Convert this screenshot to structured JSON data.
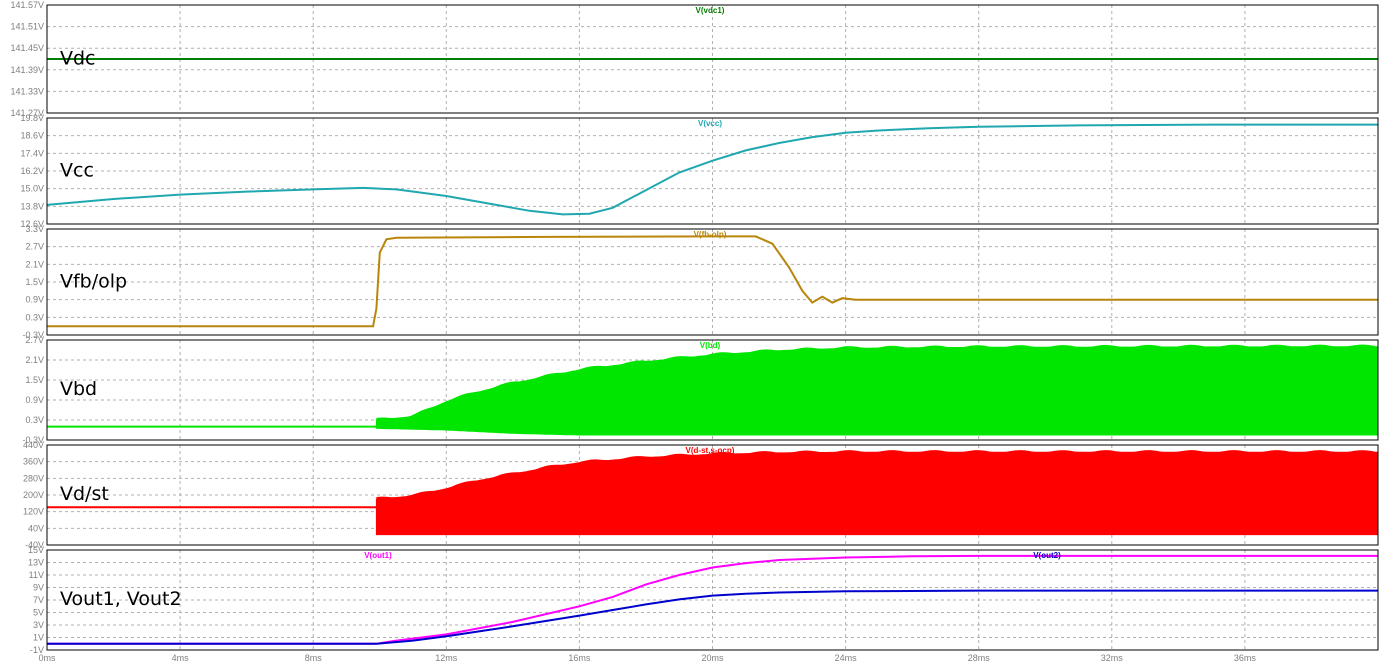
{
  "chart_data": {
    "type": "line",
    "x_unit": "ms",
    "x_range": [
      0,
      40
    ],
    "x_ticks": [
      "0ms",
      "4ms",
      "8ms",
      "12ms",
      "16ms",
      "20ms",
      "24ms",
      "28ms",
      "32ms",
      "36ms"
    ],
    "grid": true,
    "panes": [
      {
        "id": "vdc",
        "annotation": "Vdc",
        "y_ticks": [
          "141.57V",
          "141.51V",
          "141.45V",
          "141.39V",
          "141.33V",
          "141.27V"
        ],
        "ylim": [
          141.27,
          141.57
        ],
        "series": [
          {
            "name": "V(vdc1)",
            "color": "#008000",
            "kind": "line",
            "points": [
              [
                0,
                141.42
              ],
              [
                40,
                141.42
              ]
            ]
          }
        ]
      },
      {
        "id": "vcc",
        "annotation": "Vcc",
        "y_ticks": [
          "19.8V",
          "18.6V",
          "17.4V",
          "16.2V",
          "15.0V",
          "13.8V",
          "12.6V"
        ],
        "ylim": [
          12.6,
          19.8
        ],
        "series": [
          {
            "name": "V(vcc)",
            "color": "#1fa8b0",
            "kind": "line",
            "points": [
              [
                0,
                13.9
              ],
              [
                2,
                14.3
              ],
              [
                4,
                14.6
              ],
              [
                6,
                14.8
              ],
              [
                8,
                14.95
              ],
              [
                9.5,
                15.05
              ],
              [
                10.5,
                14.95
              ],
              [
                12,
                14.5
              ],
              [
                13.5,
                13.9
              ],
              [
                14.5,
                13.5
              ],
              [
                15.5,
                13.25
              ],
              [
                16.3,
                13.3
              ],
              [
                17,
                13.7
              ],
              [
                18,
                14.9
              ],
              [
                19,
                16.1
              ],
              [
                20,
                16.9
              ],
              [
                21,
                17.6
              ],
              [
                22,
                18.1
              ],
              [
                23,
                18.5
              ],
              [
                24,
                18.8
              ],
              [
                25,
                18.95
              ],
              [
                26.5,
                19.1
              ],
              [
                28,
                19.2
              ],
              [
                31,
                19.3
              ],
              [
                35,
                19.35
              ],
              [
                40,
                19.35
              ]
            ]
          }
        ]
      },
      {
        "id": "vfb",
        "annotation": "Vfb/olp",
        "y_ticks": [
          "3.3V",
          "2.7V",
          "2.1V",
          "1.5V",
          "0.9V",
          "0.3V",
          "-0.3V"
        ],
        "ylim": [
          -0.3,
          3.3
        ],
        "series": [
          {
            "name": "V(fb-olp)",
            "color": "#b8860b",
            "kind": "line",
            "points": [
              [
                0,
                0.0
              ],
              [
                9.8,
                0.0
              ],
              [
                9.9,
                0.6
              ],
              [
                10.0,
                2.5
              ],
              [
                10.2,
                2.95
              ],
              [
                10.5,
                3.0
              ],
              [
                15,
                3.03
              ],
              [
                20,
                3.05
              ],
              [
                21.3,
                3.05
              ],
              [
                21.8,
                2.8
              ],
              [
                22.3,
                2.0
              ],
              [
                22.7,
                1.2
              ],
              [
                23.0,
                0.8
              ],
              [
                23.3,
                1.0
              ],
              [
                23.6,
                0.8
              ],
              [
                23.9,
                0.95
              ],
              [
                24.3,
                0.9
              ],
              [
                40,
                0.9
              ]
            ]
          }
        ]
      },
      {
        "id": "vbd",
        "annotation": "Vbd",
        "y_ticks": [
          "2.7V",
          "2.1V",
          "1.5V",
          "0.9V",
          "0.3V",
          "-0.3V"
        ],
        "ylim": [
          -0.3,
          2.7
        ],
        "series": [
          {
            "name": "V(bd)",
            "color": "#00e600",
            "kind": "band",
            "pre_level": 0.1,
            "start": 9.9,
            "upper": [
              [
                9.9,
                0.3
              ],
              [
                11,
                0.4
              ],
              [
                12,
                0.85
              ],
              [
                13,
                1.15
              ],
              [
                14,
                1.4
              ],
              [
                15,
                1.6
              ],
              [
                16,
                1.8
              ],
              [
                18,
                2.05
              ],
              [
                20,
                2.25
              ],
              [
                22,
                2.38
              ],
              [
                24,
                2.45
              ],
              [
                28,
                2.48
              ],
              [
                40,
                2.5
              ]
            ],
            "lower": [
              [
                9.9,
                0.05
              ],
              [
                12,
                0.0
              ],
              [
                14,
                -0.1
              ],
              [
                16,
                -0.15
              ],
              [
                18,
                -0.15
              ],
              [
                20,
                -0.15
              ],
              [
                40,
                -0.15
              ]
            ]
          }
        ]
      },
      {
        "id": "vdst",
        "annotation": "Vd/st",
        "y_ticks": [
          "440V",
          "360V",
          "280V",
          "200V",
          "120V",
          "40V",
          "-40V"
        ],
        "ylim": [
          -40,
          440
        ],
        "series": [
          {
            "name": "V(d-st,s-ocp)",
            "color": "#ff0000",
            "kind": "band",
            "pre_level": 141,
            "start": 9.9,
            "upper": [
              [
                9.9,
                180
              ],
              [
                11,
                195
              ],
              [
                12,
                230
              ],
              [
                13,
                270
              ],
              [
                14,
                300
              ],
              [
                15,
                330
              ],
              [
                16,
                355
              ],
              [
                18,
                380
              ],
              [
                20,
                395
              ],
              [
                22,
                402
              ],
              [
                24,
                405
              ],
              [
                40,
                405
              ]
            ],
            "lower": [
              [
                9.9,
                10
              ],
              [
                40,
                10
              ]
            ]
          }
        ]
      },
      {
        "id": "vout",
        "annotation": "Vout1, Vout2",
        "y_ticks": [
          "15V",
          "13V",
          "11V",
          "9V",
          "7V",
          "5V",
          "3V",
          "1V",
          "-1V"
        ],
        "ylim": [
          -1,
          15
        ],
        "series": [
          {
            "name": "V(out1)",
            "color": "#ff00ff",
            "kind": "line",
            "points": [
              [
                0,
                0
              ],
              [
                9.9,
                0
              ],
              [
                10.5,
                0.5
              ],
              [
                12,
                1.5
              ],
              [
                14,
                3.5
              ],
              [
                16,
                6
              ],
              [
                17,
                7.5
              ],
              [
                18,
                9.5
              ],
              [
                19,
                11
              ],
              [
                20,
                12.2
              ],
              [
                21,
                12.9
              ],
              [
                22,
                13.4
              ],
              [
                24,
                13.8
              ],
              [
                26,
                14.0
              ],
              [
                28,
                14.05
              ],
              [
                40,
                14.05
              ]
            ]
          },
          {
            "name": "V(out2)",
            "color": "#0000cd",
            "kind": "line",
            "points": [
              [
                0,
                0
              ],
              [
                9.9,
                0
              ],
              [
                11,
                0.5
              ],
              [
                12,
                1.2
              ],
              [
                14,
                2.8
              ],
              [
                16,
                4.5
              ],
              [
                17,
                5.4
              ],
              [
                18,
                6.3
              ],
              [
                19,
                7.1
              ],
              [
                20,
                7.7
              ],
              [
                21,
                8.0
              ],
              [
                22,
                8.2
              ],
              [
                24,
                8.4
              ],
              [
                28,
                8.5
              ],
              [
                40,
                8.5
              ]
            ]
          }
        ]
      }
    ]
  }
}
